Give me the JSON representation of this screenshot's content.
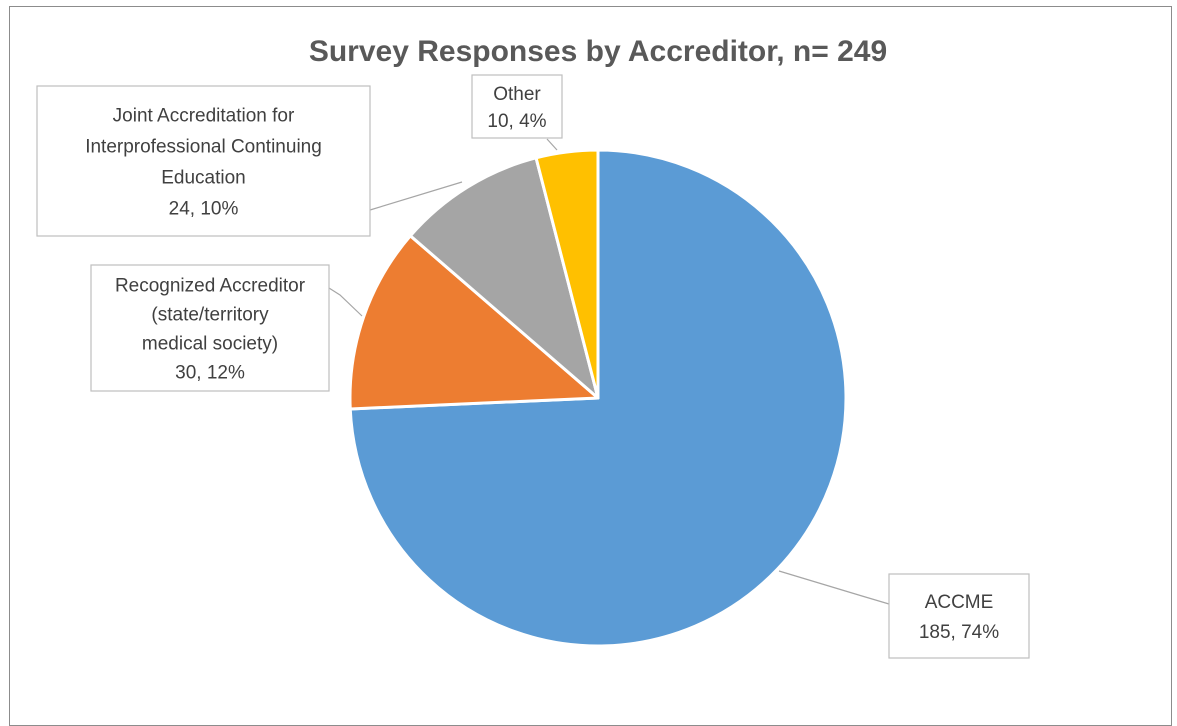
{
  "chart_data": {
    "type": "pie",
    "title": "Survey Responses by Accreditor, n= 249",
    "categories": [
      "ACCME",
      "Recognized Accreditor (state/territory medical society)",
      "Joint Accreditation for Interprofessional Continuing Education",
      "Other"
    ],
    "values": [
      185,
      30,
      24,
      10
    ],
    "percentages": [
      "74%",
      "12%",
      "10%",
      "4%"
    ],
    "colors": [
      "#5B9BD5",
      "#ED7D31",
      "#A5A5A5",
      "#FFC000"
    ],
    "labels": [
      {
        "lines": [
          "ACCME",
          "185, 74%"
        ]
      },
      {
        "lines": [
          "Recognized Accreditor",
          "(state/territory",
          "medical society)",
          "30, 12%"
        ]
      },
      {
        "lines": [
          "Joint Accreditation for",
          "Interprofessional Continuing",
          "Education",
          "24, 10%"
        ]
      },
      {
        "lines": [
          "Other",
          "10, 4%"
        ]
      }
    ],
    "legend": "none"
  }
}
